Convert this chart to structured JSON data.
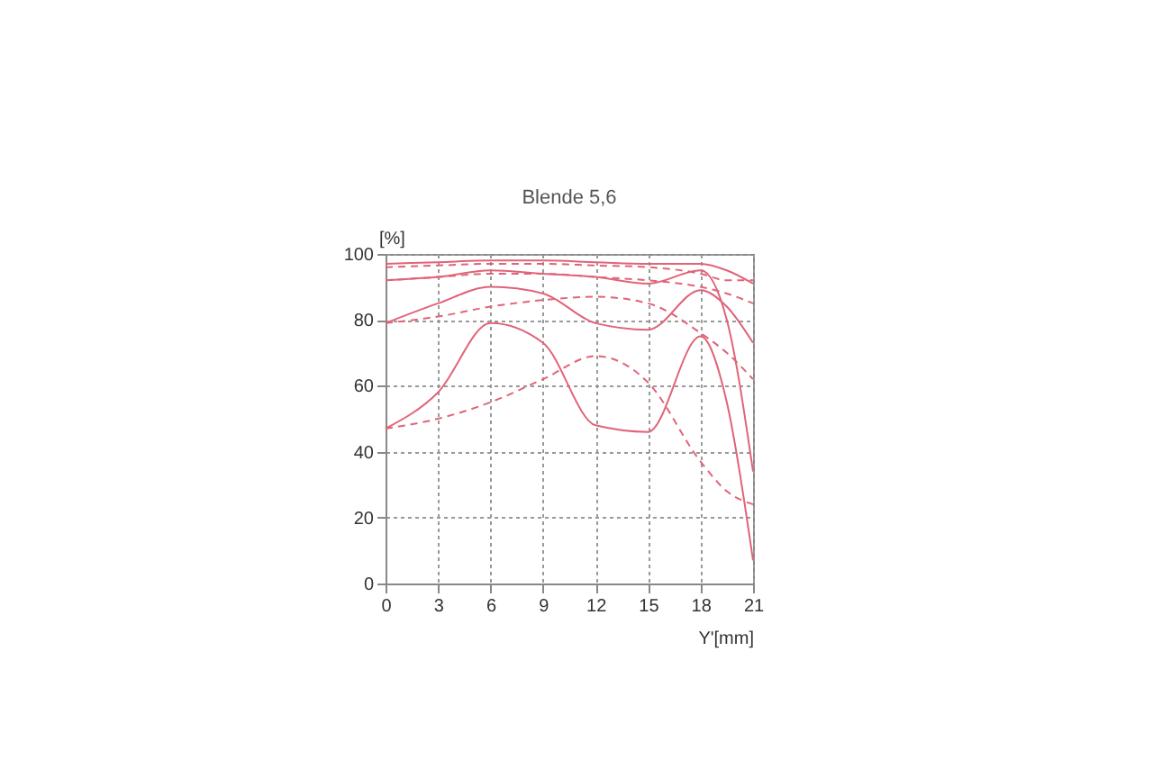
{
  "chart_data": {
    "type": "line",
    "title": "Blende 5,6",
    "xlabel": "Y'[mm]",
    "ylabel": "[%]",
    "x": [
      0,
      3,
      6,
      9,
      12,
      15,
      18,
      19.5,
      21
    ],
    "series": [
      {
        "color": "#e06478",
        "line_style": "solid",
        "values": [
          97,
          97.5,
          98,
          98,
          97.5,
          97,
          97,
          95,
          91
        ]
      },
      {
        "color": "#e06478",
        "line_style": "solid",
        "values": [
          92,
          93,
          95,
          94,
          93,
          91,
          95,
          80,
          34
        ]
      },
      {
        "color": "#e06478",
        "line_style": "solid",
        "values": [
          79,
          85,
          90,
          88,
          79,
          77,
          89,
          84,
          73
        ]
      },
      {
        "color": "#e06478",
        "line_style": "solid",
        "values": [
          47,
          58,
          79,
          73,
          48,
          46,
          75,
          55,
          7
        ]
      },
      {
        "color": "#e06478",
        "line_style": "dashed",
        "values": [
          96,
          96.5,
          97,
          97,
          96.5,
          96,
          94,
          92,
          92
        ]
      },
      {
        "color": "#e06478",
        "line_style": "dashed",
        "values": [
          92,
          93,
          94,
          94,
          93,
          92,
          90,
          88,
          85
        ]
      },
      {
        "color": "#e06478",
        "line_style": "dashed",
        "values": [
          79,
          81,
          84,
          86,
          87,
          85,
          76,
          70,
          62
        ]
      },
      {
        "color": "#e06478",
        "line_style": "dashed",
        "values": [
          47,
          50,
          55,
          62,
          69,
          61,
          37,
          28,
          24
        ]
      }
    ],
    "xlim": [
      0,
      21
    ],
    "ylim": [
      0,
      100
    ],
    "xticks": [
      0,
      3,
      6,
      9,
      12,
      15,
      18,
      21
    ],
    "yticks": [
      0,
      20,
      40,
      60,
      80,
      100
    ],
    "grid": true,
    "marker": "none"
  }
}
